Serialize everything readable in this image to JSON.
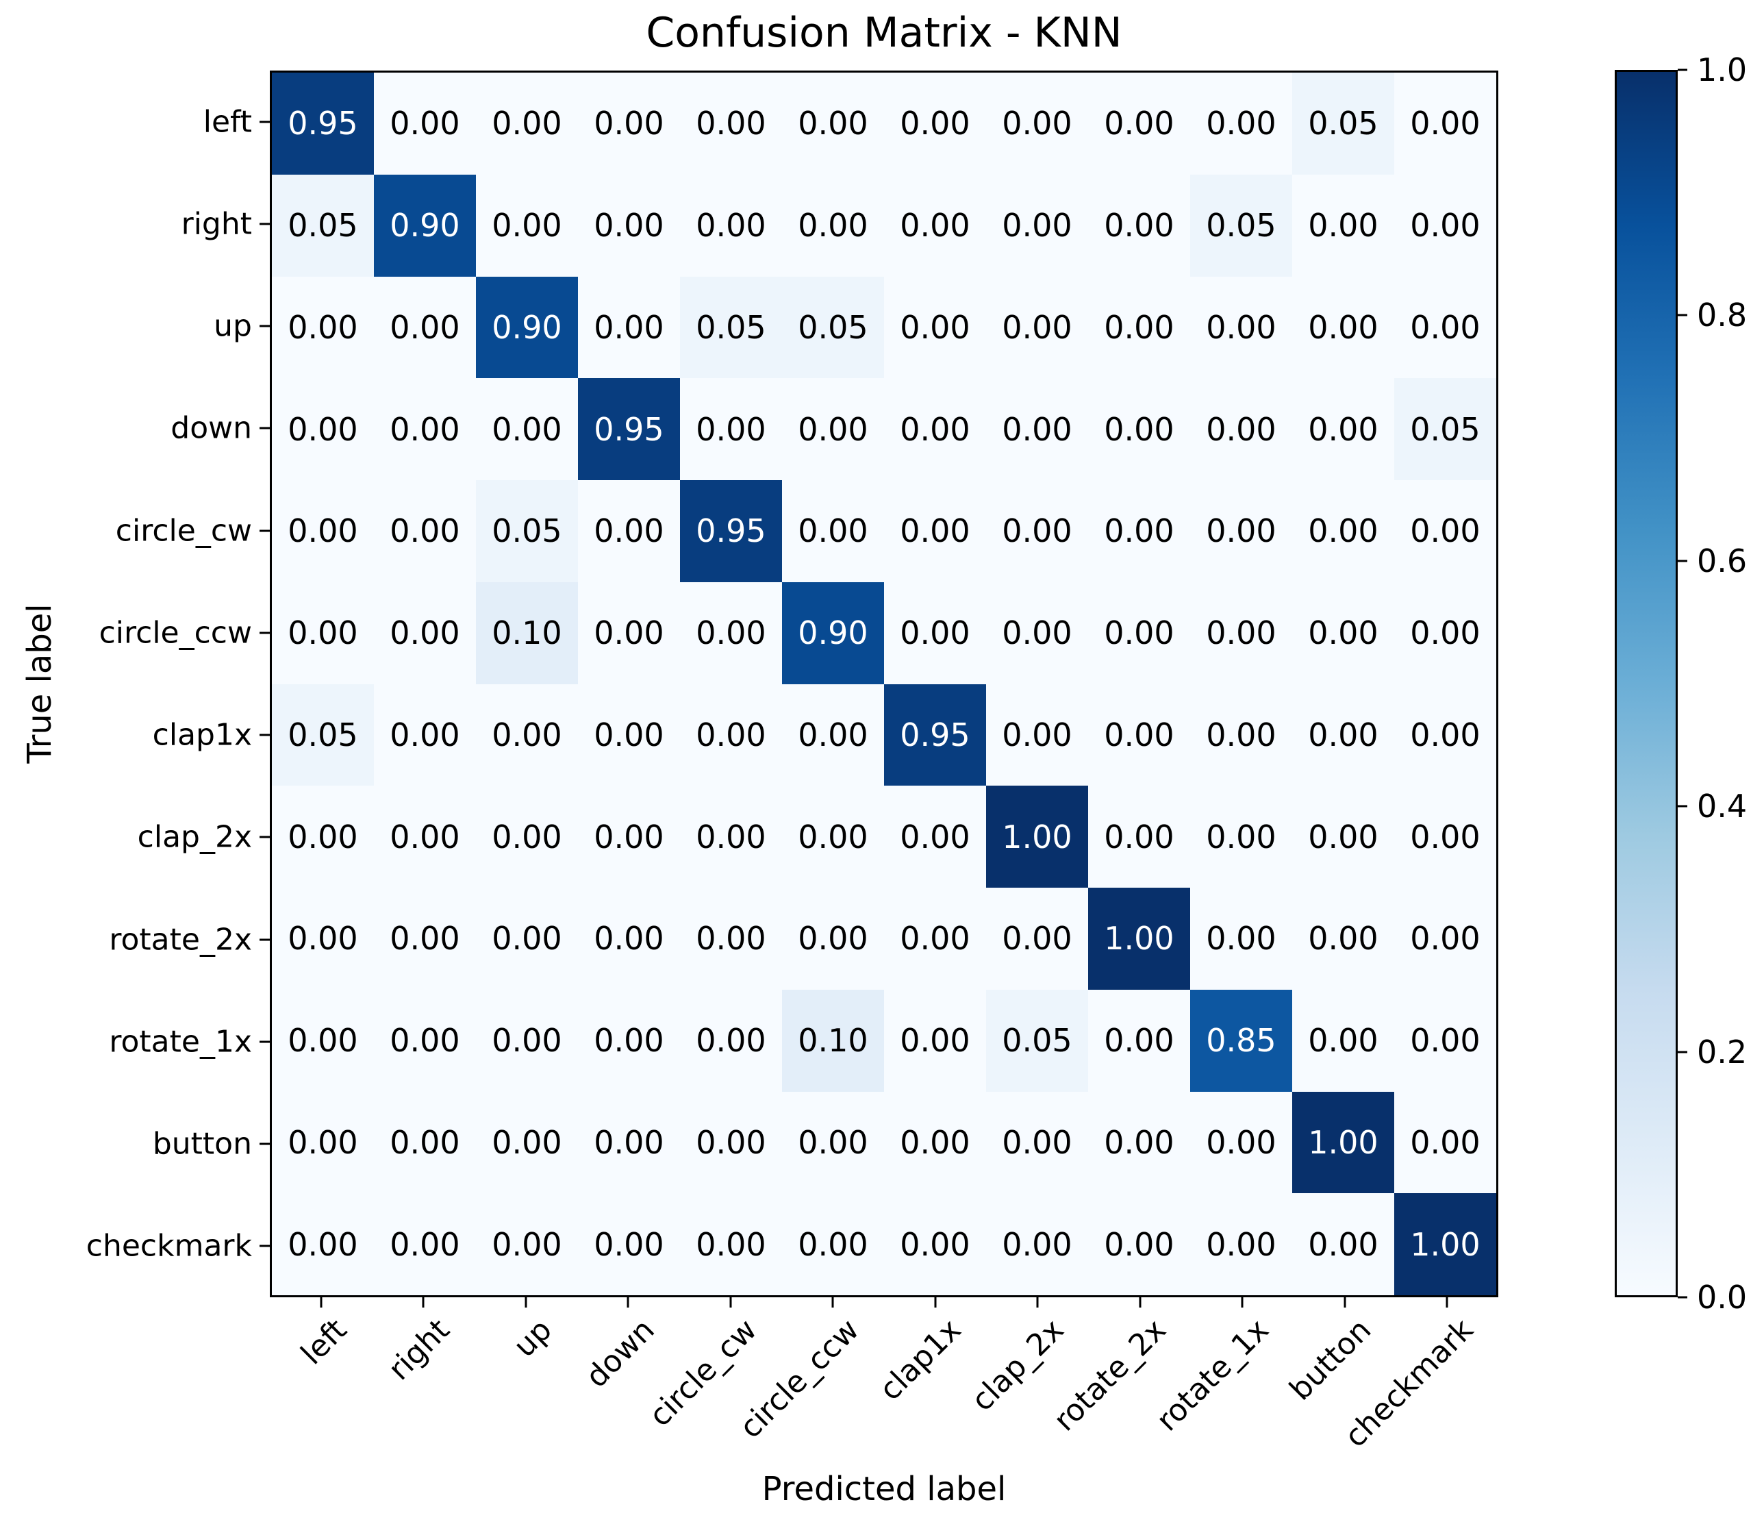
{
  "chart_data": {
    "type": "heatmap",
    "title": "Confusion Matrix - KNN",
    "xlabel": "Predicted label",
    "ylabel": "True label",
    "categories": [
      "left",
      "right",
      "up",
      "down",
      "circle_cw",
      "circle_ccw",
      "clap1x",
      "clap_2x",
      "rotate_2x",
      "rotate_1x",
      "button",
      "checkmark"
    ],
    "matrix": [
      [
        0.95,
        0.0,
        0.0,
        0.0,
        0.0,
        0.0,
        0.0,
        0.0,
        0.0,
        0.0,
        0.05,
        0.0
      ],
      [
        0.05,
        0.9,
        0.0,
        0.0,
        0.0,
        0.0,
        0.0,
        0.0,
        0.0,
        0.05,
        0.0,
        0.0
      ],
      [
        0.0,
        0.0,
        0.9,
        0.0,
        0.05,
        0.05,
        0.0,
        0.0,
        0.0,
        0.0,
        0.0,
        0.0
      ],
      [
        0.0,
        0.0,
        0.0,
        0.95,
        0.0,
        0.0,
        0.0,
        0.0,
        0.0,
        0.0,
        0.0,
        0.05
      ],
      [
        0.0,
        0.0,
        0.05,
        0.0,
        0.95,
        0.0,
        0.0,
        0.0,
        0.0,
        0.0,
        0.0,
        0.0
      ],
      [
        0.0,
        0.0,
        0.1,
        0.0,
        0.0,
        0.9,
        0.0,
        0.0,
        0.0,
        0.0,
        0.0,
        0.0
      ],
      [
        0.05,
        0.0,
        0.0,
        0.0,
        0.0,
        0.0,
        0.95,
        0.0,
        0.0,
        0.0,
        0.0,
        0.0
      ],
      [
        0.0,
        0.0,
        0.0,
        0.0,
        0.0,
        0.0,
        0.0,
        1.0,
        0.0,
        0.0,
        0.0,
        0.0
      ],
      [
        0.0,
        0.0,
        0.0,
        0.0,
        0.0,
        0.0,
        0.0,
        0.0,
        1.0,
        0.0,
        0.0,
        0.0
      ],
      [
        0.0,
        0.0,
        0.0,
        0.0,
        0.0,
        0.1,
        0.0,
        0.05,
        0.0,
        0.85,
        0.0,
        0.0
      ],
      [
        0.0,
        0.0,
        0.0,
        0.0,
        0.0,
        0.0,
        0.0,
        0.0,
        0.0,
        0.0,
        1.0,
        0.0
      ],
      [
        0.0,
        0.0,
        0.0,
        0.0,
        0.0,
        0.0,
        0.0,
        0.0,
        0.0,
        0.0,
        0.0,
        1.0
      ]
    ],
    "value_decimals": 2,
    "value_range": [
      0,
      1
    ],
    "grid": false,
    "colormap_name": "Blues",
    "colormap_anchors": [
      "#f7fbff",
      "#deebf7",
      "#c6dbef",
      "#9ecae1",
      "#6baed6",
      "#4292c6",
      "#2171b5",
      "#08519c",
      "#08306b"
    ],
    "cell_text_color_dark_bg": "#ffffff",
    "cell_text_color_light_bg": "#000000",
    "cell_text_threshold": 0.5,
    "colorbar": {
      "position": "right",
      "tick_values": [
        1.0,
        0.8,
        0.6,
        0.4,
        0.2,
        0.0
      ],
      "tick_decimals": 1
    }
  }
}
